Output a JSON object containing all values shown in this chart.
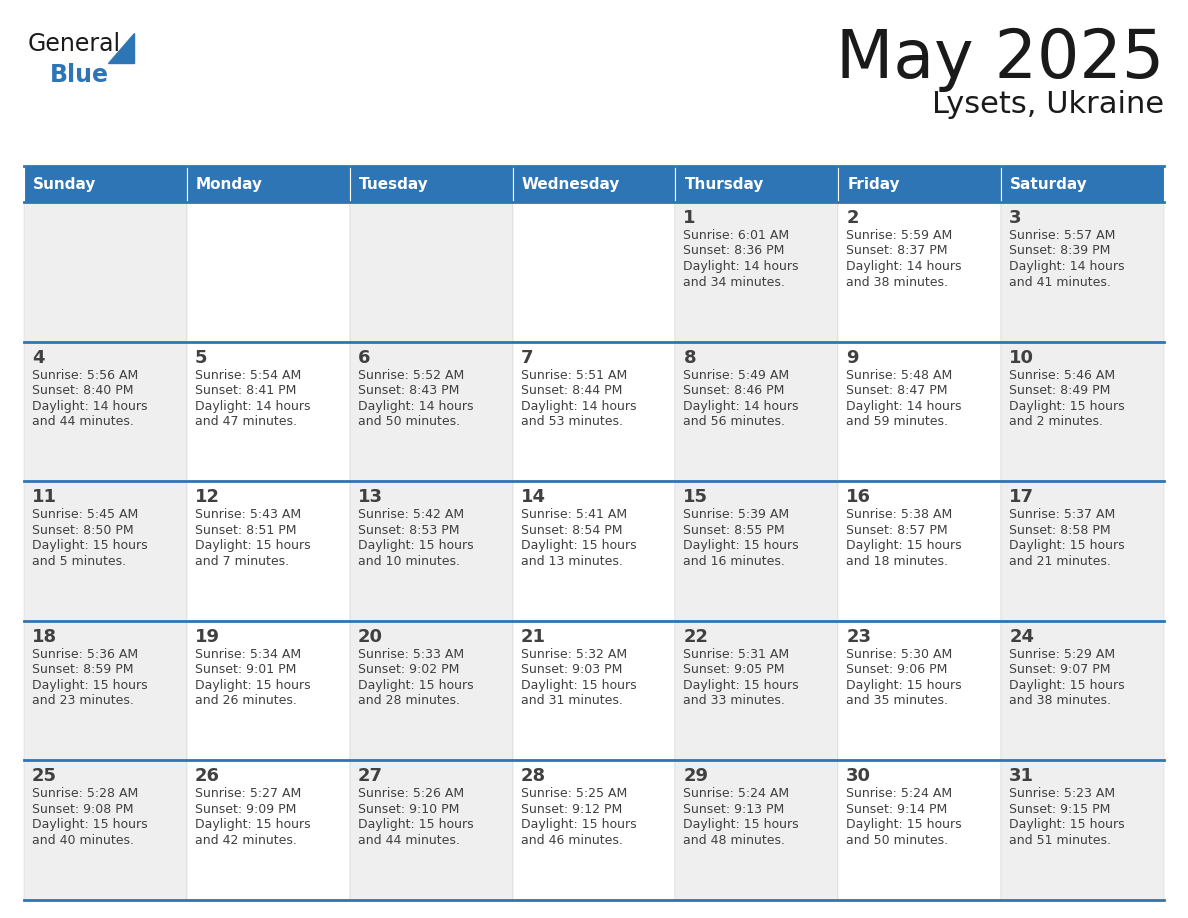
{
  "title": "May 2025",
  "subtitle": "Lysets, Ukraine",
  "days_of_week": [
    "Sunday",
    "Monday",
    "Tuesday",
    "Wednesday",
    "Thursday",
    "Friday",
    "Saturday"
  ],
  "header_bg": "#2E75B6",
  "header_text": "#FFFFFF",
  "cell_bg_light": "#EFEFEF",
  "cell_bg_white": "#FFFFFF",
  "row_line_color": "#2E75B6",
  "text_color": "#404040",
  "title_color": "#1a1a1a",
  "subtitle_color": "#1a1a1a",
  "logo_general_color": "#1a1a1a",
  "logo_blue_color": "#2E75B6",
  "logo_triangle_color": "#2E75B6",
  "calendar_data": [
    [
      {
        "day": "",
        "sunrise": "",
        "sunset": "",
        "daylight": ""
      },
      {
        "day": "",
        "sunrise": "",
        "sunset": "",
        "daylight": ""
      },
      {
        "day": "",
        "sunrise": "",
        "sunset": "",
        "daylight": ""
      },
      {
        "day": "",
        "sunrise": "",
        "sunset": "",
        "daylight": ""
      },
      {
        "day": "1",
        "sunrise": "6:01 AM",
        "sunset": "8:36 PM",
        "daylight": "14 hours and 34 minutes."
      },
      {
        "day": "2",
        "sunrise": "5:59 AM",
        "sunset": "8:37 PM",
        "daylight": "14 hours and 38 minutes."
      },
      {
        "day": "3",
        "sunrise": "5:57 AM",
        "sunset": "8:39 PM",
        "daylight": "14 hours and 41 minutes."
      }
    ],
    [
      {
        "day": "4",
        "sunrise": "5:56 AM",
        "sunset": "8:40 PM",
        "daylight": "14 hours and 44 minutes."
      },
      {
        "day": "5",
        "sunrise": "5:54 AM",
        "sunset": "8:41 PM",
        "daylight": "14 hours and 47 minutes."
      },
      {
        "day": "6",
        "sunrise": "5:52 AM",
        "sunset": "8:43 PM",
        "daylight": "14 hours and 50 minutes."
      },
      {
        "day": "7",
        "sunrise": "5:51 AM",
        "sunset": "8:44 PM",
        "daylight": "14 hours and 53 minutes."
      },
      {
        "day": "8",
        "sunrise": "5:49 AM",
        "sunset": "8:46 PM",
        "daylight": "14 hours and 56 minutes."
      },
      {
        "day": "9",
        "sunrise": "5:48 AM",
        "sunset": "8:47 PM",
        "daylight": "14 hours and 59 minutes."
      },
      {
        "day": "10",
        "sunrise": "5:46 AM",
        "sunset": "8:49 PM",
        "daylight": "15 hours and 2 minutes."
      }
    ],
    [
      {
        "day": "11",
        "sunrise": "5:45 AM",
        "sunset": "8:50 PM",
        "daylight": "15 hours and 5 minutes."
      },
      {
        "day": "12",
        "sunrise": "5:43 AM",
        "sunset": "8:51 PM",
        "daylight": "15 hours and 7 minutes."
      },
      {
        "day": "13",
        "sunrise": "5:42 AM",
        "sunset": "8:53 PM",
        "daylight": "15 hours and 10 minutes."
      },
      {
        "day": "14",
        "sunrise": "5:41 AM",
        "sunset": "8:54 PM",
        "daylight": "15 hours and 13 minutes."
      },
      {
        "day": "15",
        "sunrise": "5:39 AM",
        "sunset": "8:55 PM",
        "daylight": "15 hours and 16 minutes."
      },
      {
        "day": "16",
        "sunrise": "5:38 AM",
        "sunset": "8:57 PM",
        "daylight": "15 hours and 18 minutes."
      },
      {
        "day": "17",
        "sunrise": "5:37 AM",
        "sunset": "8:58 PM",
        "daylight": "15 hours and 21 minutes."
      }
    ],
    [
      {
        "day": "18",
        "sunrise": "5:36 AM",
        "sunset": "8:59 PM",
        "daylight": "15 hours and 23 minutes."
      },
      {
        "day": "19",
        "sunrise": "5:34 AM",
        "sunset": "9:01 PM",
        "daylight": "15 hours and 26 minutes."
      },
      {
        "day": "20",
        "sunrise": "5:33 AM",
        "sunset": "9:02 PM",
        "daylight": "15 hours and 28 minutes."
      },
      {
        "day": "21",
        "sunrise": "5:32 AM",
        "sunset": "9:03 PM",
        "daylight": "15 hours and 31 minutes."
      },
      {
        "day": "22",
        "sunrise": "5:31 AM",
        "sunset": "9:05 PM",
        "daylight": "15 hours and 33 minutes."
      },
      {
        "day": "23",
        "sunrise": "5:30 AM",
        "sunset": "9:06 PM",
        "daylight": "15 hours and 35 minutes."
      },
      {
        "day": "24",
        "sunrise": "5:29 AM",
        "sunset": "9:07 PM",
        "daylight": "15 hours and 38 minutes."
      }
    ],
    [
      {
        "day": "25",
        "sunrise": "5:28 AM",
        "sunset": "9:08 PM",
        "daylight": "15 hours and 40 minutes."
      },
      {
        "day": "26",
        "sunrise": "5:27 AM",
        "sunset": "9:09 PM",
        "daylight": "15 hours and 42 minutes."
      },
      {
        "day": "27",
        "sunrise": "5:26 AM",
        "sunset": "9:10 PM",
        "daylight": "15 hours and 44 minutes."
      },
      {
        "day": "28",
        "sunrise": "5:25 AM",
        "sunset": "9:12 PM",
        "daylight": "15 hours and 46 minutes."
      },
      {
        "day": "29",
        "sunrise": "5:24 AM",
        "sunset": "9:13 PM",
        "daylight": "15 hours and 48 minutes."
      },
      {
        "day": "30",
        "sunrise": "5:24 AM",
        "sunset": "9:14 PM",
        "daylight": "15 hours and 50 minutes."
      },
      {
        "day": "31",
        "sunrise": "5:23 AM",
        "sunset": "9:15 PM",
        "daylight": "15 hours and 51 minutes."
      }
    ]
  ]
}
